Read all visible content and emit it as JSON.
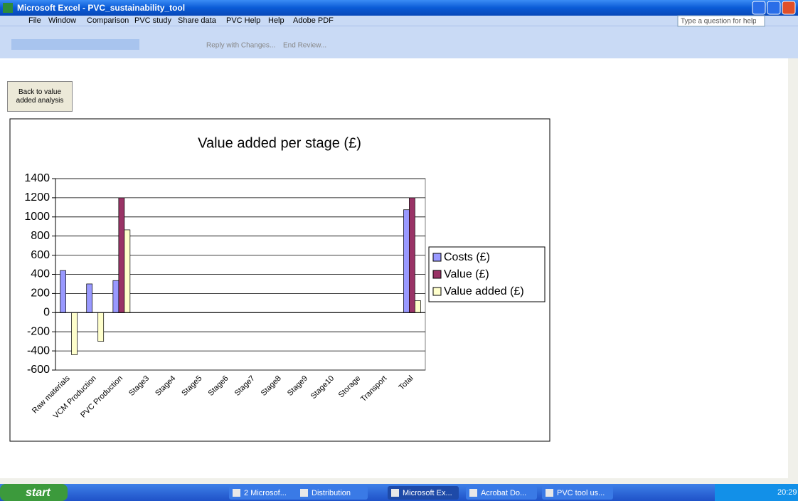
{
  "window": {
    "title": "Microsoft Excel - PVC_sustainability_tool",
    "menu": [
      "File",
      "Window",
      "Comparison",
      "PVC study",
      "Share data",
      "PVC Help",
      "Help",
      "Adobe PDF"
    ],
    "help_box": "Type a question for help",
    "toolbar": [
      "Reply with Changes...",
      "End Review..."
    ],
    "button": "Back to value added analysis"
  },
  "chart_data": {
    "type": "bar",
    "title": "Value added per stage (£)",
    "categories": [
      "Raw materials",
      "VCM Production",
      "PVC Production",
      "Stage3",
      "Stage4",
      "Stage5",
      "Stage6",
      "Stage7",
      "Stage8",
      "Stage9",
      "Stage10",
      "Storage",
      "Transport",
      "Total"
    ],
    "series": [
      {
        "name": "Costs (£)",
        "color": "#9999ff",
        "values": [
          440,
          300,
          335,
          0,
          0,
          0,
          0,
          0,
          0,
          0,
          0,
          0,
          0,
          1075
        ]
      },
      {
        "name": "Value (£)",
        "color": "#993366",
        "values": [
          0,
          0,
          1200,
          0,
          0,
          0,
          0,
          0,
          0,
          0,
          0,
          0,
          0,
          1200
        ]
      },
      {
        "name": "Value added (£)",
        "color": "#ffffcc",
        "values": [
          -440,
          -300,
          865,
          0,
          0,
          0,
          0,
          0,
          0,
          0,
          0,
          0,
          0,
          125
        ]
      }
    ],
    "ylim": [
      -600,
      1400
    ],
    "yticks": [
      -600,
      -400,
      -200,
      0,
      200,
      400,
      600,
      800,
      1000,
      1200,
      1400
    ],
    "grid": true,
    "legend": "right"
  },
  "taskbar": {
    "start": "start",
    "items": [
      "2 Microsof...",
      "Distribution",
      "Microsoft Ex...",
      "Acrobat Do...",
      "PVC tool us..."
    ],
    "clock": "20:29"
  }
}
